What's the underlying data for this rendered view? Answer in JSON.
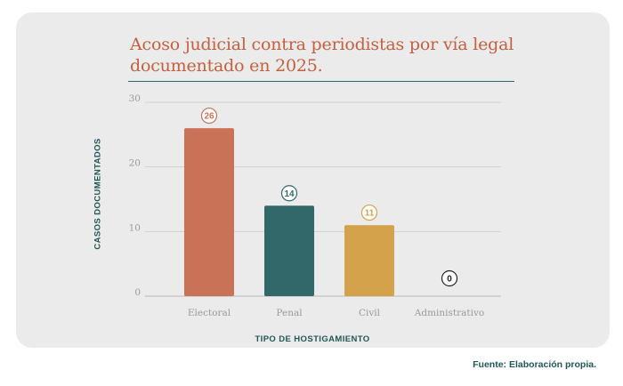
{
  "chart_data": {
    "type": "bar",
    "title": "Acoso judicial contra periodistas por vía legal documentado en 2025.",
    "xlabel": "TIPO DE HOSTIGAMIENTO",
    "ylabel": "CASOS DOCUMENTADOS",
    "categories": [
      "Electoral",
      "Penal",
      "Civil",
      "Administrativo"
    ],
    "values": [
      26,
      14,
      11,
      0
    ],
    "value_labels": [
      "26",
      "14",
      "11",
      "0"
    ],
    "yticks": [
      "0",
      "10",
      "20",
      "30"
    ],
    "ylim": [
      0,
      30
    ],
    "grid": true,
    "colors": [
      "#c97258",
      "#33686a",
      "#d5a24c",
      "#222222"
    ]
  },
  "footer": {
    "source": "Fuente: Elaboración propia."
  }
}
